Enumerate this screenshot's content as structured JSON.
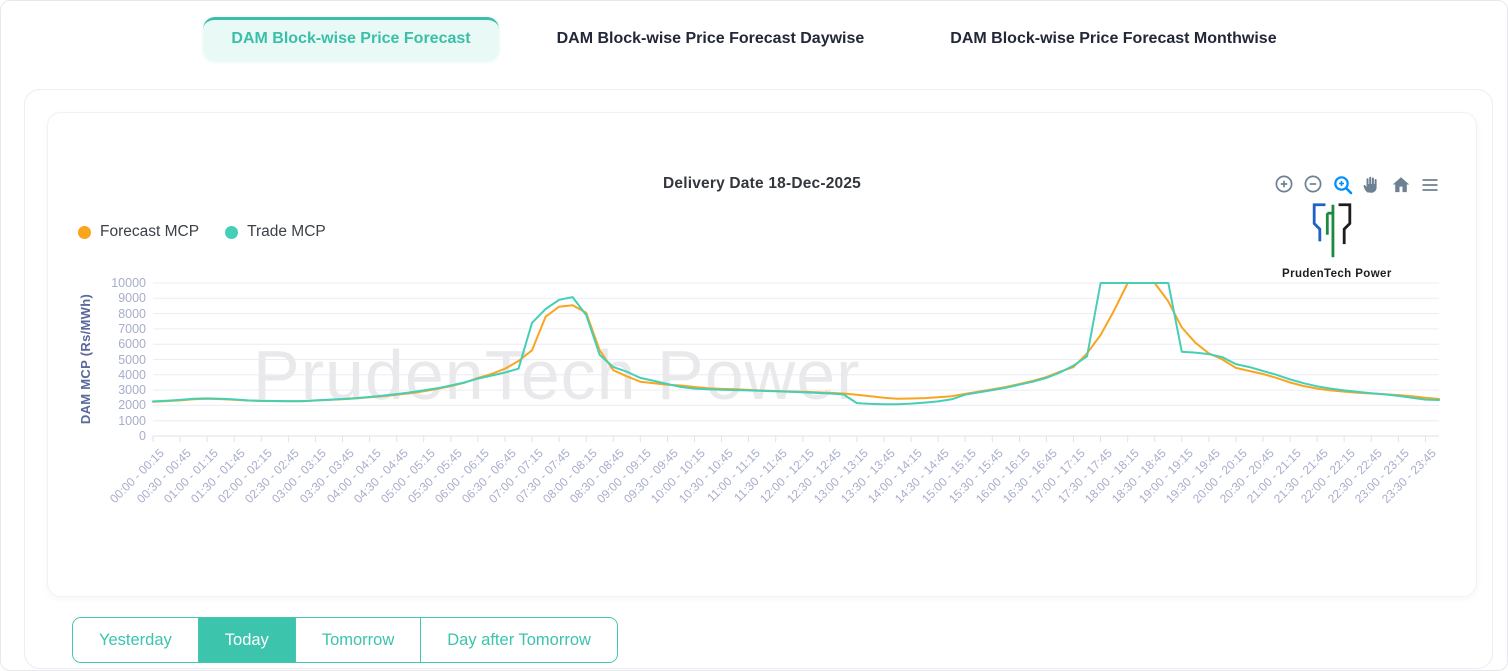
{
  "tabs": [
    {
      "label": "DAM Block-wise Price Forecast",
      "active": true
    },
    {
      "label": "DAM Block-wise Price Forecast Daywise",
      "active": false
    },
    {
      "label": "DAM Block-wise Price Forecast Monthwise",
      "active": false
    }
  ],
  "chart": {
    "title": "Delivery Date 18-Dec-2025",
    "ylabel": "DAM MCP (Rs/MWh)",
    "watermark": "PrudenTech Power",
    "logo_text": "PrudenTech  Power",
    "toolbar_icons": [
      "zoom-in-icon",
      "zoom-out-icon",
      "selection-zoom-icon",
      "pan-icon",
      "home-icon",
      "menu-icon"
    ],
    "toolbar_active_icon": "selection-zoom-icon"
  },
  "chart_data": {
    "type": "line",
    "title": "Delivery Date 18-Dec-2025",
    "ylabel": "DAM MCP (Rs/MWh)",
    "ylim": [
      0,
      10000
    ],
    "ytick_step": 1000,
    "grid": "horizontal",
    "legend_position": "top-left",
    "x_block_minutes": 15,
    "x_points": 96,
    "x_tick_labels": [
      "00:00 - 00:15",
      "00:30 - 00:45",
      "01:00 - 01:15",
      "01:30 - 01:45",
      "02:00 - 02:15",
      "02:30 - 02:45",
      "03:00 - 03:15",
      "03:30 - 03:45",
      "04:00 - 04:15",
      "04:30 - 04:45",
      "05:00 - 05:15",
      "05:30 - 05:45",
      "06:00 - 06:15",
      "06:30 - 06:45",
      "07:00 - 07:15",
      "07:30 - 07:45",
      "08:00 - 08:15",
      "08:30 - 08:45",
      "09:00 - 09:15",
      "09:30 - 09:45",
      "10:00 - 10:15",
      "10:30 - 10:45",
      "11:00 - 11:15",
      "11:30 - 11:45",
      "12:00 - 12:15",
      "12:30 - 12:45",
      "13:00 - 13:15",
      "13:30 - 13:45",
      "14:00 - 14:15",
      "14:30 - 14:45",
      "15:00 - 15:15",
      "15:30 - 15:45",
      "16:00 - 16:15",
      "16:30 - 16:45",
      "17:00 - 17:15",
      "17:30 - 17:45",
      "18:00 - 18:15",
      "18:30 - 18:45",
      "19:00 - 19:15",
      "19:30 - 19:45",
      "20:00 - 20:15",
      "20:30 - 20:45",
      "21:00 - 21:15",
      "21:30 - 21:45",
      "22:00 - 22:15",
      "22:30 - 22:45",
      "23:00 - 23:15",
      "23:30 - 23:45"
    ],
    "series": [
      {
        "name": "Forecast MCP",
        "color": "#F9A51F",
        "values": [
          2240,
          2280,
          2330,
          2400,
          2430,
          2410,
          2370,
          2320,
          2290,
          2280,
          2270,
          2270,
          2320,
          2360,
          2400,
          2460,
          2530,
          2610,
          2700,
          2800,
          2930,
          3080,
          3260,
          3480,
          3800,
          4050,
          4400,
          4900,
          5600,
          7800,
          8450,
          8550,
          8050,
          5600,
          4300,
          3900,
          3550,
          3450,
          3350,
          3300,
          3200,
          3120,
          3080,
          3050,
          3010,
          2970,
          2940,
          2910,
          2890,
          2860,
          2820,
          2780,
          2700,
          2600,
          2500,
          2430,
          2450,
          2480,
          2530,
          2600,
          2750,
          2900,
          3050,
          3200,
          3400,
          3600,
          3850,
          4200,
          4500,
          5400,
          6600,
          8200,
          10000,
          10000,
          10000,
          8800,
          7100,
          6100,
          5400,
          5000,
          4450,
          4250,
          4050,
          3800,
          3500,
          3270,
          3100,
          2980,
          2900,
          2830,
          2780,
          2730,
          2670,
          2600,
          2500,
          2420
        ]
      },
      {
        "name": "Trade MCP",
        "color": "#45CFB6",
        "values": [
          2260,
          2300,
          2360,
          2430,
          2460,
          2440,
          2390,
          2330,
          2300,
          2290,
          2280,
          2280,
          2330,
          2370,
          2420,
          2480,
          2550,
          2640,
          2740,
          2850,
          2980,
          3120,
          3300,
          3500,
          3750,
          3950,
          4150,
          4400,
          7400,
          8300,
          8900,
          9080,
          7900,
          5300,
          4500,
          4200,
          3800,
          3600,
          3400,
          3200,
          3100,
          3050,
          3020,
          3000,
          2980,
          2950,
          2920,
          2890,
          2860,
          2820,
          2780,
          2720,
          2150,
          2100,
          2080,
          2080,
          2120,
          2180,
          2260,
          2400,
          2700,
          2850,
          3000,
          3150,
          3350,
          3550,
          3800,
          4150,
          4600,
          5200,
          10000,
          10000,
          10000,
          10000,
          10000,
          10000,
          5500,
          5450,
          5350,
          5150,
          4700,
          4500,
          4250,
          4000,
          3700,
          3450,
          3250,
          3100,
          2980,
          2880,
          2800,
          2720,
          2620,
          2500,
          2380,
          2350
        ]
      }
    ]
  },
  "footer_buttons": [
    {
      "label": "Yesterday",
      "active": false
    },
    {
      "label": "Today",
      "active": true
    },
    {
      "label": "Tomorrow",
      "active": false
    },
    {
      "label": "Day after Tomorrow",
      "active": false
    }
  ],
  "colors": {
    "accent": "#3CC4AD",
    "accent_bg": "#E9F9F5",
    "toolbar_active": "#008FFB",
    "toolbar_gray": "#6E8192",
    "axis_title": "#5A689B",
    "axis_tick": "#A7ADCA",
    "gridline": "#ECECF3",
    "watermark_color": "#E9E9EC"
  }
}
